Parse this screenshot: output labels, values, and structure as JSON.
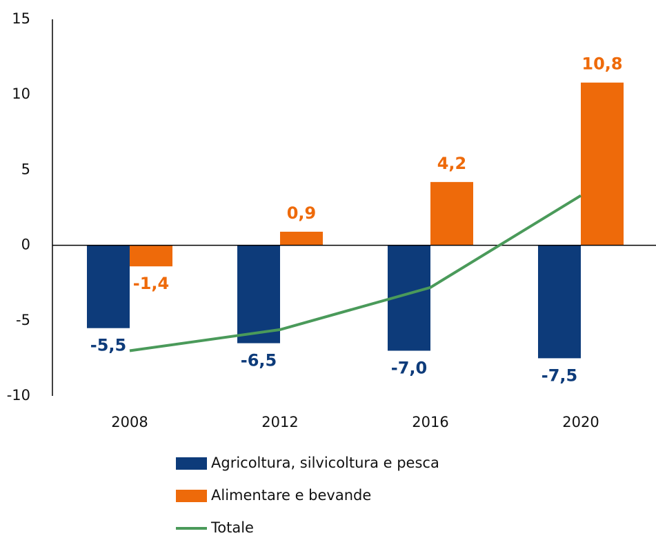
{
  "chart_data": {
    "type": "bar",
    "categories": [
      "2008",
      "2012",
      "2016",
      "2020"
    ],
    "series": [
      {
        "name": "Agricoltura, silvicoltura e pesca",
        "type": "bar",
        "color": "#0d3b7a",
        "values": [
          -5.5,
          -6.5,
          -7.0,
          -7.5
        ],
        "value_labels": [
          "-5,5",
          "-6,5",
          "-7,0",
          "-7,5"
        ]
      },
      {
        "name": "Alimentare e bevande",
        "type": "bar",
        "color": "#ee6a0a",
        "values": [
          -1.4,
          0.9,
          4.2,
          10.8
        ],
        "value_labels": [
          "-1,4",
          "0,9",
          "4,2",
          "10,8"
        ]
      },
      {
        "name": "Totale",
        "type": "line",
        "color": "#4a9a5a",
        "values": [
          -7.0,
          -5.6,
          -2.8,
          3.3
        ]
      }
    ],
    "ylim": [
      -10,
      15
    ],
    "yticks": [
      -10,
      -5,
      0,
      5,
      10,
      15
    ],
    "grid": false
  }
}
